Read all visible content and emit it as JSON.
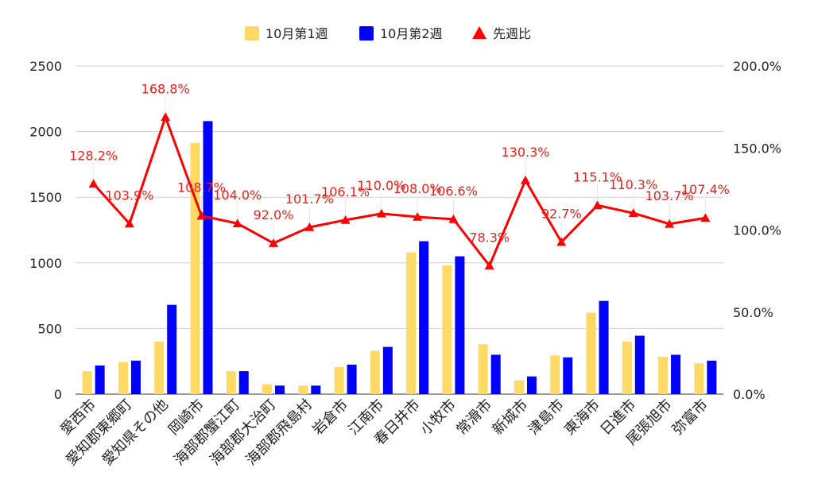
{
  "chart_data": {
    "type": "bar",
    "categories": [
      "愛西市",
      "愛知郡東郷町",
      "愛知県その他",
      "岡崎市",
      "海部郡蟹江町",
      "海部郡大治町",
      "海部郡飛島村",
      "岩倉市",
      "江南市",
      "春日井市",
      "小牧市",
      "常滑市",
      "新城市",
      "津島市",
      "東海市",
      "日進市",
      "尾張旭市",
      "弥富市"
    ],
    "series": [
      {
        "name": "10月第1週",
        "axis": "left",
        "color": "#ffd966",
        "values": [
          175,
          245,
          400,
          1915,
          175,
          75,
          65,
          205,
          330,
          1080,
          980,
          380,
          105,
          295,
          620,
          400,
          285,
          235
        ]
      },
      {
        "name": "10月第2週",
        "axis": "left",
        "color": "#0000ff",
        "values": [
          218,
          255,
          680,
          2080,
          175,
          65,
          65,
          225,
          360,
          1165,
          1050,
          300,
          135,
          280,
          710,
          445,
          300,
          255
        ]
      },
      {
        "name": "先週比",
        "axis": "right",
        "type": "line",
        "color": "#ff0000",
        "values": [
          128.2,
          103.9,
          168.8,
          108.7,
          104.0,
          92.0,
          101.7,
          106.1,
          110.0,
          108.0,
          106.6,
          78.3,
          130.3,
          92.7,
          115.1,
          110.3,
          103.7,
          107.4
        ],
        "labels": [
          "128.2%",
          "103.9%",
          "168.8%",
          "108.7%",
          "104.0%",
          "92.0%",
          "101.7%",
          "106.1%",
          "110.0%",
          "108.0%",
          "106.6%",
          "78.3%",
          "130.3%",
          "92.7%",
          "115.1%",
          "110.3%",
          "103.7%",
          "107.4%"
        ]
      }
    ],
    "y_left": {
      "min": 0,
      "max": 2500,
      "ticks": [
        "0",
        "500",
        "1000",
        "1500",
        "2000",
        "2500"
      ]
    },
    "y_right": {
      "min": 0,
      "max": 200,
      "ticks": [
        "0.0%",
        "50.0%",
        "100.0%",
        "150.0%",
        "200.0%"
      ]
    },
    "grid": true,
    "legend_position": "top"
  }
}
